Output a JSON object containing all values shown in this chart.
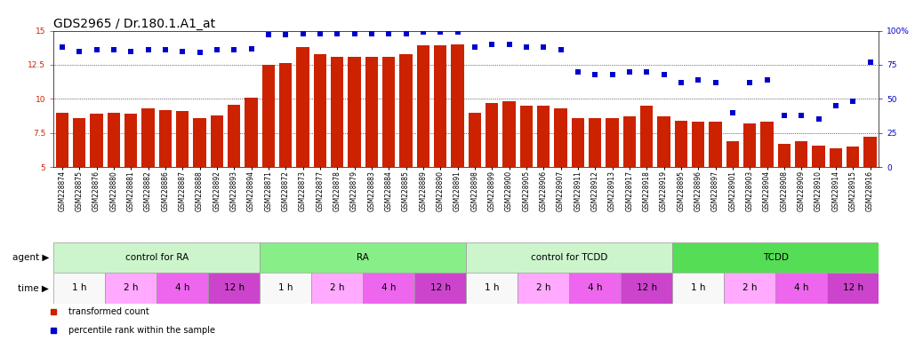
{
  "title": "GDS2965 / Dr.180.1.A1_at",
  "samples": [
    "GSM228874",
    "GSM228875",
    "GSM228876",
    "GSM228880",
    "GSM228881",
    "GSM228882",
    "GSM228886",
    "GSM228887",
    "GSM228888",
    "GSM228892",
    "GSM228893",
    "GSM228894",
    "GSM228871",
    "GSM228872",
    "GSM228873",
    "GSM228877",
    "GSM228878",
    "GSM228879",
    "GSM228883",
    "GSM228884",
    "GSM228885",
    "GSM228889",
    "GSM228890",
    "GSM228891",
    "GSM228898",
    "GSM228899",
    "GSM228900",
    "GSM228905",
    "GSM228906",
    "GSM228907",
    "GSM228911",
    "GSM228912",
    "GSM228913",
    "GSM228917",
    "GSM228918",
    "GSM228919",
    "GSM228895",
    "GSM228896",
    "GSM228897",
    "GSM228901",
    "GSM228903",
    "GSM228904",
    "GSM228908",
    "GSM228909",
    "GSM228910",
    "GSM228914",
    "GSM228915",
    "GSM228916"
  ],
  "bar_values": [
    9.0,
    8.6,
    8.9,
    9.0,
    8.9,
    9.3,
    9.2,
    9.1,
    8.6,
    8.8,
    9.6,
    10.1,
    12.5,
    12.6,
    13.8,
    13.3,
    13.1,
    13.1,
    13.1,
    13.1,
    13.3,
    13.9,
    13.9,
    14.0,
    9.0,
    9.7,
    9.8,
    9.5,
    9.5,
    9.3,
    8.6,
    8.6,
    8.6,
    8.7,
    9.5,
    8.7,
    8.4,
    8.3,
    8.3,
    6.9,
    8.2,
    8.3,
    6.7,
    6.9,
    6.6,
    6.4,
    6.5,
    7.2
  ],
  "percentile_values": [
    88,
    85,
    86,
    86,
    85,
    86,
    86,
    85,
    84,
    86,
    86,
    87,
    97,
    97,
    98,
    98,
    98,
    98,
    98,
    98,
    98,
    99,
    99,
    99,
    88,
    90,
    90,
    88,
    88,
    86,
    70,
    68,
    68,
    70,
    70,
    68,
    62,
    64,
    62,
    40,
    62,
    64,
    38,
    38,
    35,
    45,
    48,
    77
  ],
  "bar_color": "#cc2200",
  "dot_color": "#0000cc",
  "ylim_left": [
    5,
    15
  ],
  "ylim_right": [
    0,
    100
  ],
  "yticks_left": [
    5,
    7.5,
    10,
    12.5,
    15
  ],
  "yticks_right": [
    0,
    25,
    50,
    75,
    100
  ],
  "ytick_labels_left": [
    "5",
    "7.5",
    "10",
    "12.5",
    "15"
  ],
  "ytick_labels_right": [
    "0",
    "25",
    "50",
    "75",
    "100%"
  ],
  "groups": [
    {
      "label": "control for RA",
      "start": 0,
      "end": 12,
      "color": "#ccf5cc"
    },
    {
      "label": "RA",
      "start": 12,
      "end": 24,
      "color": "#88ee88"
    },
    {
      "label": "control for TCDD",
      "start": 24,
      "end": 36,
      "color": "#ccf5cc"
    },
    {
      "label": "TCDD",
      "start": 36,
      "end": 48,
      "color": "#55dd55"
    }
  ],
  "time_blocks": [
    {
      "label": "1 h",
      "color": "#f8f8f8"
    },
    {
      "label": "2 h",
      "color": "#ffaaff"
    },
    {
      "label": "4 h",
      "color": "#ee66ee"
    },
    {
      "label": "12 h",
      "color": "#cc44cc"
    }
  ],
  "agent_label": "agent",
  "time_label": "time",
  "legend_bar_label": "transformed count",
  "legend_dot_label": "percentile rank within the sample",
  "background_color": "#ffffff",
  "title_fontsize": 10,
  "tick_fontsize": 6.5,
  "xtick_fontsize": 5.5,
  "bar_width": 0.75,
  "n_samples": 48,
  "n_groups": 4,
  "n_time_types": 4,
  "samples_per_time": 3
}
